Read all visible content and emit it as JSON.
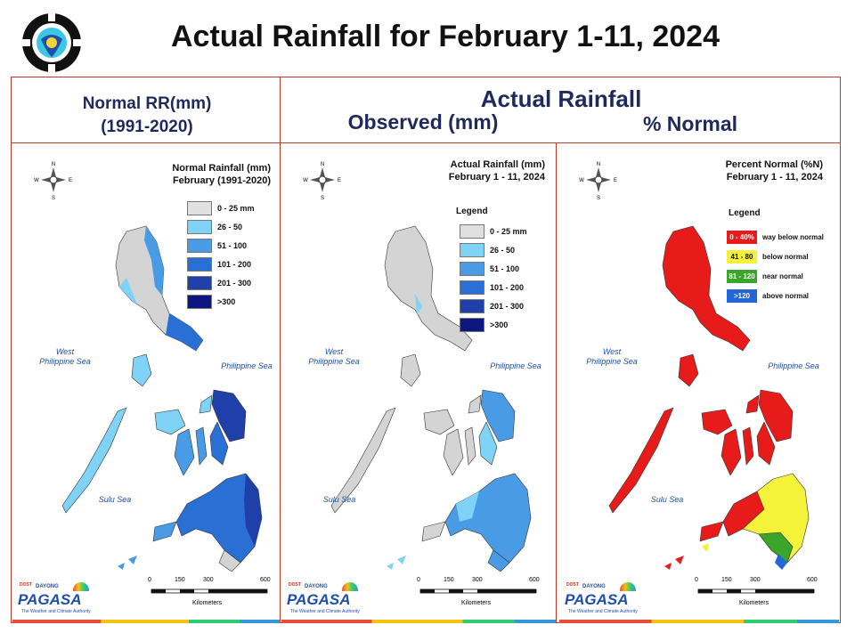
{
  "header": {
    "title": "Actual Rainfall for February 1-11, 2024"
  },
  "columns": {
    "normal_line1": "Normal RR(mm)",
    "normal_line2": "(1991-2020)",
    "actual": "Actual Rainfall",
    "observed": "Observed (mm)",
    "percent": "% Normal"
  },
  "compass": {
    "n": "N",
    "s": "S",
    "e": "E",
    "w": "W"
  },
  "seas": {
    "west_line1": "West",
    "west_line2": "Philippine Sea",
    "east": "Philippine Sea",
    "sulu": "Sulu Sea"
  },
  "scale": {
    "t0": "0",
    "t1": "150",
    "t2": "300",
    "t3": "600",
    "unit": "Kilometers"
  },
  "brand": {
    "name": "PAGASA",
    "small": "DOST",
    "dyn": "DAYONG",
    "tag": "The Weather and Climate Authority"
  },
  "panels": {
    "normal": {
      "title1": "Normal Rainfall (mm)",
      "title2": "February (1991-2020)",
      "legend": [
        {
          "label": "0 - 25 mm",
          "color": "#e0e0e0"
        },
        {
          "label": "26 - 50",
          "color": "#7fd3f7"
        },
        {
          "label": "51 - 100",
          "color": "#4a9be6"
        },
        {
          "label": "101 - 200",
          "color": "#2a6fd4"
        },
        {
          "label": "201 - 300",
          "color": "#1e40a8"
        },
        {
          "label": ">300",
          "color": "#0c1880"
        }
      ]
    },
    "observed": {
      "title1": "Actual Rainfall (mm)",
      "title2": "February 1 - 11, 2024",
      "legend_title": "Legend",
      "legend": [
        {
          "label": "0 - 25 mm",
          "color": "#e0e0e0"
        },
        {
          "label": "26 - 50",
          "color": "#7fd3f7"
        },
        {
          "label": "51 - 100",
          "color": "#4a9be6"
        },
        {
          "label": "101 - 200",
          "color": "#2a6fd4"
        },
        {
          "label": "201 - 300",
          "color": "#1e40a8"
        },
        {
          "label": ">300",
          "color": "#0c1880"
        }
      ]
    },
    "percent": {
      "title1": "Percent Normal (%N)",
      "title2": "February 1 - 11, 2024",
      "legend_title": "Legend",
      "legend": [
        {
          "range": "0 - 40%",
          "label": "way below normal",
          "color": "#e81b1b",
          "text": "#ffffff"
        },
        {
          "range": "41 - 80",
          "label": "below normal",
          "color": "#f5f23a",
          "text": "#111111"
        },
        {
          "range": "81 - 120",
          "label": "near normal",
          "color": "#3aa52a",
          "text": "#ffffff"
        },
        {
          "range": ">120",
          "label": "above normal",
          "color": "#2266d8",
          "text": "#ffffff"
        }
      ]
    }
  }
}
